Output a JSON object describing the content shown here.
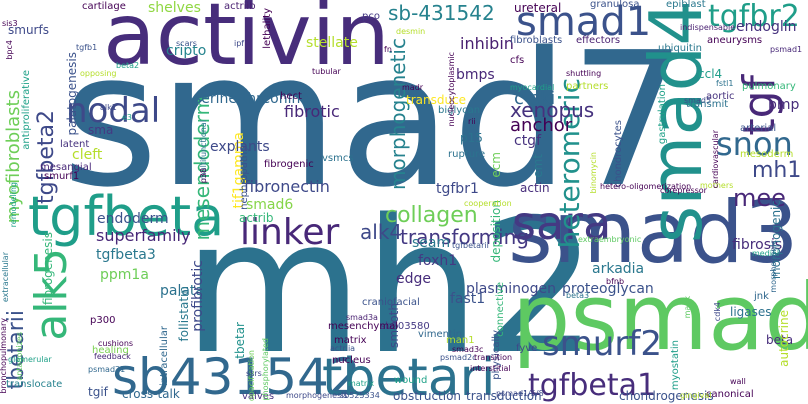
{
  "words": [
    {
      "t": "smad7",
      "c": "#31688e"
    },
    {
      "t": "mh2",
      "c": "#2c728e"
    },
    {
      "t": "activin",
      "c": "#472d7b"
    },
    {
      "t": "smad3",
      "c": "#3b528b"
    },
    {
      "t": "psmad2",
      "c": "#5ec962"
    },
    {
      "t": "smad4",
      "c": "#21918c"
    },
    {
      "t": "smad1",
      "c": "#3b528b"
    },
    {
      "t": "tgfbeta",
      "c": "#1f9e89"
    },
    {
      "t": "sb431542",
      "c": "#31688e"
    },
    {
      "t": "tbetari",
      "c": "#2c728e"
    },
    {
      "t": "sara",
      "c": "#443983"
    },
    {
      "t": "alk5",
      "c": "#35b779"
    },
    {
      "t": "linker",
      "c": "#482878"
    },
    {
      "t": "nodal",
      "c": "#3e4989"
    },
    {
      "t": "smurf2",
      "c": "#3b528b"
    },
    {
      "t": "tgfbeta1",
      "c": "#472d7b"
    },
    {
      "t": "tgfbr2",
      "c": "#1f9e89"
    },
    {
      "t": "tgf",
      "c": "#482878"
    },
    {
      "t": "snon",
      "c": "#31688e"
    },
    {
      "t": "heteromeric",
      "c": "#21918c"
    },
    {
      "t": "mh1",
      "c": "#3e4989"
    },
    {
      "t": "alk4",
      "c": "#3e4989"
    },
    {
      "t": "mee",
      "c": "#482878"
    },
    {
      "t": "tgfbeta2",
      "c": "#3e4989"
    },
    {
      "t": "tbetarii",
      "c": "#3b528b"
    },
    {
      "t": "collagen",
      "c": "#6ece58"
    },
    {
      "t": "transforming",
      "c": "#443983"
    },
    {
      "t": "sb-431542",
      "c": "#26828e"
    },
    {
      "t": "morphogenetic",
      "c": "#26828e"
    },
    {
      "t": "xenopus",
      "c": "#46327e"
    },
    {
      "t": "c-ski",
      "c": "#31688e"
    },
    {
      "t": "anchor",
      "c": "#440154"
    },
    {
      "t": "mesendoderm",
      "c": "#35b779"
    },
    {
      "t": "superfamily",
      "c": "#482878"
    },
    {
      "t": "fibronectin",
      "c": "#3e4989"
    },
    {
      "t": "myofibroblasts",
      "c": "#6ece58"
    },
    {
      "t": "fibrotic",
      "c": "#482878"
    },
    {
      "t": "inhibin",
      "c": "#481f70"
    },
    {
      "t": "bmps",
      "c": "#482878"
    },
    {
      "t": "cripto",
      "c": "#25848e"
    },
    {
      "t": "stellate",
      "c": "#b5de2b"
    },
    {
      "t": "shelves",
      "c": "#90d743"
    },
    {
      "t": "endoglin",
      "c": "#46327e"
    },
    {
      "t": "serine/threonine",
      "c": "#31688e"
    },
    {
      "t": "tgfbeta3",
      "c": "#2a788e"
    },
    {
      "t": "smad6",
      "c": "#86d549"
    },
    {
      "t": "endoderm",
      "c": "#3b528b"
    },
    {
      "t": "palatal",
      "c": "#2c728e"
    },
    {
      "t": "ppm1a",
      "c": "#6ece58"
    },
    {
      "t": "edge",
      "c": "#472d7b"
    },
    {
      "t": "fast1",
      "c": "#3b528b"
    },
    {
      "t": "foxh1",
      "c": "#443983"
    },
    {
      "t": "seam",
      "c": "#2a788e"
    },
    {
      "t": "plasminogen",
      "c": "#3e4989"
    },
    {
      "t": "proteoglycan",
      "c": "#3b528b"
    },
    {
      "t": "arkadia",
      "c": "#2a788e"
    },
    {
      "t": "fibrosis",
      "c": "#472d7b"
    },
    {
      "t": "ctgf",
      "c": "#46327e"
    },
    {
      "t": "tgfbr1",
      "c": "#3e4989"
    },
    {
      "t": "tif1gamma",
      "c": "#fde725"
    },
    {
      "t": "explants",
      "c": "#3e4989"
    },
    {
      "t": "actrib",
      "c": "#35b779"
    },
    {
      "t": "cleft",
      "c": "#b5de2b"
    },
    {
      "t": "bmp",
      "c": "#472d7b"
    },
    {
      "t": "ccl4",
      "c": "#1f9e89"
    },
    {
      "t": "fibrogenesis",
      "c": "#35b779"
    },
    {
      "t": "profibrotic",
      "c": "#3e4989"
    },
    {
      "t": "follistatin",
      "c": "#2a788e"
    },
    {
      "t": "tbetar",
      "c": "#21918c"
    },
    {
      "t": "sb203580",
      "c": "#443983"
    },
    {
      "t": "vimentin",
      "c": "#31688e"
    },
    {
      "t": "beta",
      "c": "#472d7b"
    },
    {
      "t": "ecm",
      "c": "#6ece58"
    },
    {
      "t": "actin",
      "c": "#472d7b"
    },
    {
      "t": "emt",
      "c": "#2a788e"
    },
    {
      "t": "p15",
      "c": "#2c728e"
    },
    {
      "t": "rupture",
      "c": "#2c728e"
    },
    {
      "t": "biglycan",
      "c": "#2a788e"
    },
    {
      "t": "transduce",
      "c": "#fde725"
    },
    {
      "t": "morphogenic",
      "c": "#2c728e"
    },
    {
      "t": "autocrine",
      "c": "#b5de2b"
    },
    {
      "t": "smooth",
      "c": "#3e4989"
    },
    {
      "t": "deposition",
      "c": "#35b779"
    },
    {
      "t": "connective",
      "c": "#35b779"
    },
    {
      "t": "cross-talk",
      "c": "#31688e"
    },
    {
      "t": "obstruction",
      "c": "#3b528b"
    },
    {
      "t": "transduction",
      "c": "#3b528b"
    },
    {
      "t": "chondrogenesis",
      "c": "#3b528b"
    },
    {
      "t": "morphogenesis",
      "c": "#3e4989"
    },
    {
      "t": "translocate",
      "c": "#26828e"
    },
    {
      "t": "healing",
      "c": "#7ad151"
    },
    {
      "t": "wound",
      "c": "#1fa188"
    },
    {
      "t": "canonical",
      "c": "#440154"
    },
    {
      "t": "valves",
      "c": "#46327e"
    },
    {
      "t": "tgif",
      "c": "#3b528b"
    },
    {
      "t": "latent",
      "c": "#46327e"
    },
    {
      "t": "p300",
      "c": "#440154"
    },
    {
      "t": "myostatin",
      "c": "#1f9e89"
    },
    {
      "t": "ligases",
      "c": "#2c728e"
    },
    {
      "t": "jnk",
      "c": "#31688e"
    },
    {
      "t": "cdk4",
      "c": "#3e4989"
    },
    {
      "t": "beta3",
      "c": "#2c728e"
    },
    {
      "t": "fyve",
      "c": "#3e4989"
    },
    {
      "t": "man1",
      "c": "#b5de2b"
    },
    {
      "t": "physically",
      "c": "#3b528b"
    },
    {
      "t": "mapk",
      "c": "#5ec962"
    },
    {
      "t": "matrix",
      "c": "#440154"
    },
    {
      "t": "actriia",
      "c": "#3b528b"
    },
    {
      "t": "nucleus",
      "c": "#440154"
    },
    {
      "t": "smad3a",
      "c": "#481f70"
    },
    {
      "t": "mesenchymal",
      "c": "#440154"
    },
    {
      "t": "craniofacial",
      "c": "#3b528b"
    },
    {
      "t": "intracellular",
      "c": "#31688e"
    },
    {
      "t": "mesangial",
      "c": "#482878"
    },
    {
      "t": "smurf1",
      "c": "#440154"
    },
    {
      "t": "remodeling",
      "c": "#1fa188"
    },
    {
      "t": "extracellular",
      "c": "#2a788e"
    },
    {
      "t": "feedback",
      "c": "#482878"
    },
    {
      "t": "fibrogenic",
      "c": "#440154"
    },
    {
      "t": "antiproliferative",
      "c": "#1fa188"
    },
    {
      "t": "palatogenesis",
      "c": "#3b528b"
    },
    {
      "t": "smurfs",
      "c": "#3e4989"
    },
    {
      "t": "cartilage",
      "c": "#440154"
    },
    {
      "t": "actriib",
      "c": "#481f70"
    },
    {
      "t": "lethality",
      "c": "#440154"
    },
    {
      "t": "pco",
      "c": "#443983"
    },
    {
      "t": "ureteral",
      "c": "#440154"
    },
    {
      "t": "granulosa",
      "c": "#3b528b"
    },
    {
      "t": "epiblast",
      "c": "#2a788e"
    },
    {
      "t": "fibroblasts",
      "c": "#3b528b"
    },
    {
      "t": "effectors",
      "c": "#481f70"
    },
    {
      "t": "ubiquitin",
      "c": "#2a788e"
    },
    {
      "t": "aneurysms",
      "c": "#440154"
    },
    {
      "t": "indispensable",
      "c": "#481f70"
    },
    {
      "t": "psmad1",
      "c": "#482878"
    },
    {
      "t": "pulmonary",
      "c": "#35b779"
    },
    {
      "t": "aortic",
      "c": "#46327e"
    },
    {
      "t": "arterial",
      "c": "#3b528b"
    },
    {
      "t": "smad5",
      "c": "#3e4989"
    },
    {
      "t": "fstl1",
      "c": "#2c728e"
    },
    {
      "t": "transmit",
      "c": "#2c728e"
    },
    {
      "t": "mesoderm",
      "c": "#b5de2b"
    },
    {
      "t": "gastrulation",
      "c": "#1fa188"
    },
    {
      "t": "chondrocytes",
      "c": "#3b528b"
    },
    {
      "t": "partners",
      "c": "#b5de2b"
    },
    {
      "t": "cfs",
      "c": "#440154"
    },
    {
      "t": "shuttling",
      "c": "#440154"
    },
    {
      "t": "myocardial",
      "c": "#1fa188"
    },
    {
      "t": "nephropathy",
      "c": "#3b528b"
    },
    {
      "t": "vsmcs",
      "c": "#2c728e"
    },
    {
      "t": "hect",
      "c": "#440154"
    },
    {
      "t": "tubular",
      "c": "#440154"
    },
    {
      "t": "multifunctional",
      "c": "#2c728e"
    },
    {
      "t": "tgfb1",
      "c": "#3b528b"
    },
    {
      "t": "scars",
      "c": "#3b528b"
    },
    {
      "t": "ipf",
      "c": "#3e4989"
    },
    {
      "t": "fn",
      "c": "#440154"
    },
    {
      "t": "e3",
      "c": "#1fa188"
    },
    {
      "t": "alk1",
      "c": "#3e4989"
    },
    {
      "t": "beta2",
      "c": "#1fa188"
    },
    {
      "t": "opposing",
      "c": "#b5de2b"
    },
    {
      "t": "sis3",
      "c": "#440154"
    },
    {
      "t": "bpc4",
      "c": "#440154"
    },
    {
      "t": "cushions",
      "c": "#440154"
    },
    {
      "t": "antagonizes",
      "c": "#5ec962"
    },
    {
      "t": "glomerular",
      "c": "#1fa188"
    },
    {
      "t": "bronchopulmonary",
      "c": "#440154"
    },
    {
      "t": "psmad21",
      "c": "#31688e"
    },
    {
      "t": "smad3c",
      "c": "#440154"
    },
    {
      "t": "psmad2c",
      "c": "#3b528b"
    },
    {
      "t": "phosphorylated",
      "c": "#5ec962"
    },
    {
      "t": "opacification",
      "c": "#6ece58"
    },
    {
      "t": "sb525334",
      "c": "#3b528b"
    },
    {
      "t": "psmad1/5/8",
      "c": "#3e4989"
    },
    {
      "t": "interstitial",
      "c": "#440154"
    },
    {
      "t": "transition",
      "c": "#440154"
    },
    {
      "t": "cooperation",
      "c": "#b5de2b"
    },
    {
      "t": "hetero-oligomerization",
      "c": "#440154"
    },
    {
      "t": "corepressor",
      "c": "#440154"
    },
    {
      "t": "nucleocytoplasmic",
      "c": "#440154"
    },
    {
      "t": "rii",
      "c": "#440154"
    },
    {
      "t": "mothers",
      "c": "#b5de2b"
    },
    {
      "t": "cardiovascular",
      "c": "#440154"
    },
    {
      "t": "binomycin",
      "c": "#b5de2b"
    },
    {
      "t": "extraembryonic",
      "c": "#5ec962"
    },
    {
      "t": "medial",
      "c": "#1fa188"
    },
    {
      "t": "morphogenic",
      "c": "#31688e"
    },
    {
      "t": "gingival",
      "c": "#b5de2b"
    },
    {
      "t": "wall",
      "c": "#440154"
    },
    {
      "t": "bfnb",
      "c": "#440154"
    },
    {
      "t": "desmin",
      "c": "#b5de2b"
    },
    {
      "t": "madr",
      "c": "#440154"
    },
    {
      "t": "ssrs",
      "c": "#3e4989"
    },
    {
      "t": "p38",
      "c": "#440154"
    },
    {
      "t": "sma",
      "c": "#443983"
    },
    {
      "t": "matrix",
      "c": "#1fa188"
    },
    {
      "t": "tgfbetarii",
      "c": "#3b528b"
    }
  ]
}
